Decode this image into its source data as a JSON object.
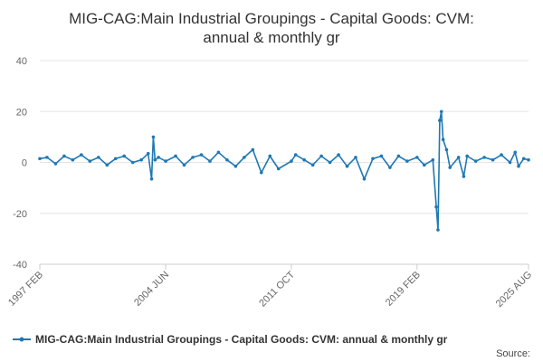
{
  "chart_data": {
    "type": "line",
    "title_lines": [
      "MIG-CAG:Main Industrial Groupings - Capital Goods: CVM:",
      "annual & monthly gr"
    ],
    "xlabel": "",
    "ylabel": "",
    "ylim": [
      -40,
      40
    ],
    "yticks": [
      -40,
      -20,
      0,
      20,
      40
    ],
    "xlim": [
      1997.08,
      2025.58
    ],
    "xticks": [
      {
        "label": "1997 FEB",
        "x": 1997.08
      },
      {
        "label": "2004 JUN",
        "x": 2004.42
      },
      {
        "label": "2011 OCT",
        "x": 2011.75
      },
      {
        "label": "2019 FEB",
        "x": 2019.08
      },
      {
        "label": "2025 AUG",
        "x": 2025.58
      }
    ],
    "grid": true,
    "legend_position": "bottom",
    "source_label": "Source:",
    "series": [
      {
        "name": "MIG-CAG:Main Industrial Groupings - Capital Goods: CVM: annual & monthly gr",
        "color": "#1f78b4",
        "points": [
          [
            1997.08,
            1.5
          ],
          [
            1997.5,
            2.0
          ],
          [
            1998.0,
            -0.5
          ],
          [
            1998.5,
            2.5
          ],
          [
            1999.0,
            1.0
          ],
          [
            1999.5,
            3.0
          ],
          [
            2000.0,
            0.5
          ],
          [
            2000.5,
            2.0
          ],
          [
            2001.0,
            -1.0
          ],
          [
            2001.5,
            1.5
          ],
          [
            2002.0,
            2.5
          ],
          [
            2002.5,
            0.0
          ],
          [
            2003.0,
            1.0
          ],
          [
            2003.4,
            3.5
          ],
          [
            2003.6,
            -6.5
          ],
          [
            2003.7,
            10.0
          ],
          [
            2003.8,
            1.0
          ],
          [
            2004.0,
            2.0
          ],
          [
            2004.42,
            0.5
          ],
          [
            2005.0,
            2.5
          ],
          [
            2005.5,
            -1.0
          ],
          [
            2006.0,
            2.0
          ],
          [
            2006.5,
            3.0
          ],
          [
            2007.0,
            0.5
          ],
          [
            2007.5,
            4.0
          ],
          [
            2008.0,
            1.0
          ],
          [
            2008.5,
            -1.5
          ],
          [
            2009.0,
            2.0
          ],
          [
            2009.5,
            5.0
          ],
          [
            2010.0,
            -4.0
          ],
          [
            2010.5,
            2.5
          ],
          [
            2011.0,
            -2.5
          ],
          [
            2011.75,
            0.5
          ],
          [
            2012.0,
            3.0
          ],
          [
            2012.5,
            1.0
          ],
          [
            2013.0,
            -1.0
          ],
          [
            2013.5,
            2.5
          ],
          [
            2014.0,
            0.0
          ],
          [
            2014.5,
            3.0
          ],
          [
            2015.0,
            -1.5
          ],
          [
            2015.5,
            2.0
          ],
          [
            2016.0,
            -6.5
          ],
          [
            2016.5,
            1.5
          ],
          [
            2017.0,
            2.5
          ],
          [
            2017.5,
            -2.0
          ],
          [
            2018.0,
            2.5
          ],
          [
            2018.5,
            0.5
          ],
          [
            2019.08,
            2.0
          ],
          [
            2019.5,
            -1.0
          ],
          [
            2020.0,
            1.0
          ],
          [
            2020.2,
            -17.5
          ],
          [
            2020.3,
            -26.5
          ],
          [
            2020.4,
            16.5
          ],
          [
            2020.5,
            20.0
          ],
          [
            2020.6,
            9.0
          ],
          [
            2020.8,
            5.0
          ],
          [
            2021.0,
            -2.0
          ],
          [
            2021.5,
            2.0
          ],
          [
            2021.8,
            -5.5
          ],
          [
            2022.0,
            2.5
          ],
          [
            2022.5,
            0.5
          ],
          [
            2023.0,
            2.0
          ],
          [
            2023.5,
            1.0
          ],
          [
            2024.0,
            3.0
          ],
          [
            2024.5,
            0.0
          ],
          [
            2024.8,
            4.0
          ],
          [
            2025.0,
            -1.5
          ],
          [
            2025.3,
            1.5
          ],
          [
            2025.58,
            1.0
          ]
        ]
      }
    ]
  }
}
